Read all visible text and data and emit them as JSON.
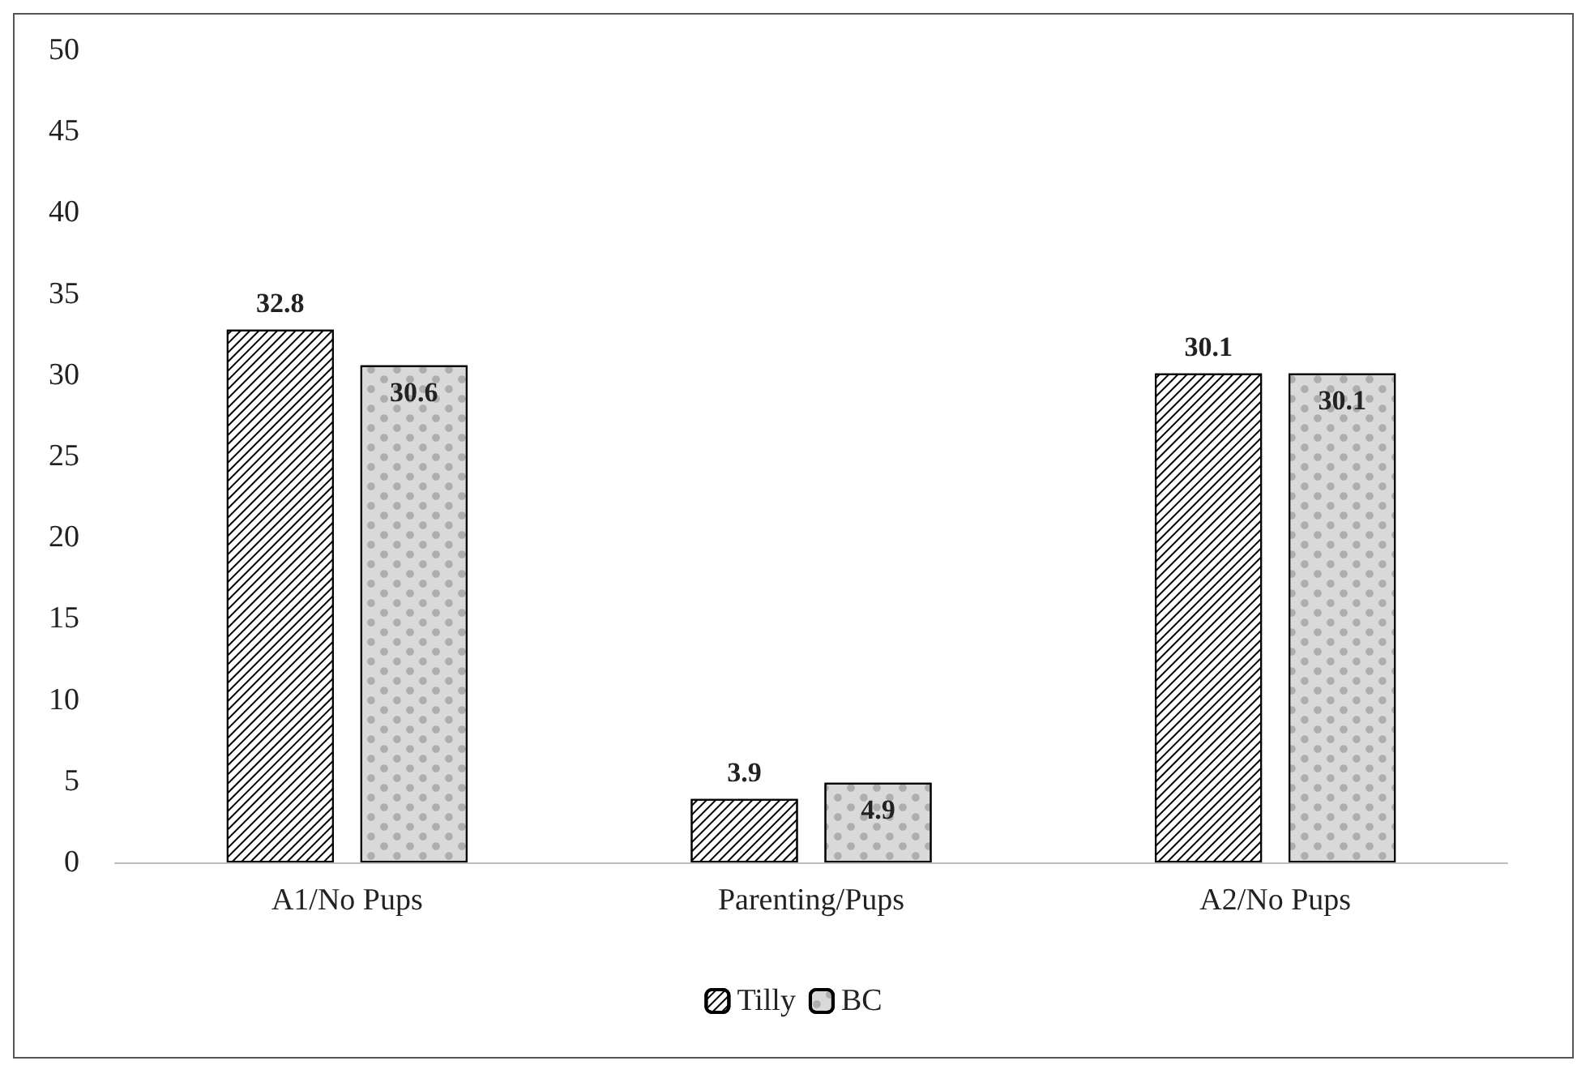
{
  "chart_data": {
    "type": "bar",
    "categories": [
      "A1/No Pups",
      "Parenting/Pups",
      "A2/No Pups"
    ],
    "series": [
      {
        "name": "Tilly",
        "color": "#000000",
        "values": [
          32.8,
          3.9,
          30.1
        ]
      },
      {
        "name": "BC",
        "color": "#d9d9d9",
        "values": [
          30.6,
          4.9,
          30.1
        ]
      }
    ],
    "ylim": [
      0,
      50
    ],
    "yticks": [
      0,
      5,
      10,
      15,
      20,
      25,
      30,
      35,
      40,
      45,
      50
    ],
    "grid": false,
    "legend": "bottom",
    "data_labels": true
  }
}
